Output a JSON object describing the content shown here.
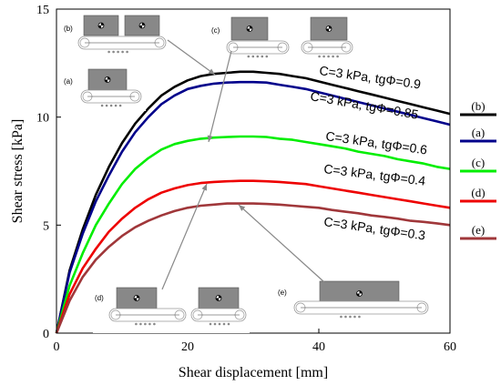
{
  "chart_data": {
    "type": "line",
    "xlabel": "Shear displacement [mm]",
    "ylabel": "Shear stress [kPa]",
    "xlim": [
      0,
      60
    ],
    "ylim": [
      0,
      15
    ],
    "xticks": [
      0,
      20,
      40,
      60
    ],
    "yticks": [
      0,
      5,
      10,
      15
    ],
    "grid": false,
    "legend_placement": "right",
    "series": [
      {
        "name": "(b)",
        "label": "C=3 kPa, tgΦ=0.9",
        "color": "#000000",
        "x": [
          0,
          2,
          4,
          6,
          8,
          10,
          12,
          14,
          16,
          18,
          20,
          22,
          24,
          26,
          28,
          30,
          32,
          34,
          36,
          38,
          40,
          42,
          44,
          46,
          48,
          50,
          52,
          54,
          56,
          58,
          60
        ],
        "y": [
          0,
          2.9,
          4.8,
          6.4,
          7.7,
          8.8,
          9.7,
          10.4,
          11.0,
          11.4,
          11.7,
          11.9,
          12.0,
          12.05,
          12.1,
          12.1,
          12.05,
          12.0,
          11.9,
          11.8,
          11.65,
          11.5,
          11.35,
          11.2,
          11.05,
          10.9,
          10.75,
          10.6,
          10.45,
          10.3,
          10.15
        ]
      },
      {
        "name": "(a)",
        "label": "C=3 kPa, tgΦ=0.85",
        "color": "#00008b",
        "x": [
          0,
          2,
          4,
          6,
          8,
          10,
          12,
          14,
          16,
          18,
          20,
          22,
          24,
          26,
          28,
          30,
          32,
          34,
          36,
          38,
          40,
          42,
          44,
          46,
          48,
          50,
          52,
          54,
          56,
          58,
          60
        ],
        "y": [
          0,
          2.8,
          4.6,
          6.1,
          7.3,
          8.4,
          9.3,
          10.0,
          10.6,
          11.0,
          11.3,
          11.45,
          11.55,
          11.6,
          11.62,
          11.62,
          11.6,
          11.5,
          11.4,
          11.3,
          11.15,
          11.0,
          10.85,
          10.7,
          10.55,
          10.4,
          10.25,
          10.1,
          9.95,
          9.8,
          9.65
        ]
      },
      {
        "name": "(c)",
        "label": "C=3 kPa, tgΦ=0.6",
        "color": "#00ee00",
        "x": [
          0,
          2,
          4,
          6,
          8,
          10,
          12,
          14,
          16,
          18,
          20,
          22,
          24,
          26,
          28,
          30,
          32,
          34,
          36,
          38,
          40,
          42,
          44,
          46,
          48,
          50,
          52,
          54,
          56,
          58,
          60
        ],
        "y": [
          0,
          2.2,
          3.7,
          5.0,
          6.0,
          6.9,
          7.6,
          8.1,
          8.5,
          8.75,
          8.9,
          9.0,
          9.05,
          9.08,
          9.1,
          9.1,
          9.08,
          9.0,
          8.95,
          8.85,
          8.75,
          8.65,
          8.55,
          8.4,
          8.3,
          8.2,
          8.05,
          7.95,
          7.85,
          7.7,
          7.6
        ]
      },
      {
        "name": "(d)",
        "label": "C=3 kPa, tgΦ=0.4",
        "color": "#ee0000",
        "x": [
          0,
          2,
          4,
          6,
          8,
          10,
          12,
          14,
          16,
          18,
          20,
          22,
          24,
          26,
          28,
          30,
          32,
          34,
          36,
          38,
          40,
          42,
          44,
          46,
          48,
          50,
          52,
          54,
          56,
          58,
          60
        ],
        "y": [
          0,
          1.8,
          3.0,
          3.9,
          4.7,
          5.3,
          5.8,
          6.2,
          6.5,
          6.7,
          6.85,
          6.95,
          7.0,
          7.03,
          7.05,
          7.05,
          7.03,
          7.0,
          6.95,
          6.9,
          6.8,
          6.7,
          6.6,
          6.5,
          6.4,
          6.3,
          6.2,
          6.1,
          6.0,
          5.9,
          5.8
        ]
      },
      {
        "name": "(e)",
        "label": "C=3 kPa, tgΦ=0.3",
        "color": "#a0373a",
        "x": [
          0,
          2,
          4,
          6,
          8,
          10,
          12,
          14,
          16,
          18,
          20,
          22,
          24,
          26,
          28,
          30,
          32,
          34,
          36,
          38,
          40,
          42,
          44,
          46,
          48,
          50,
          52,
          54,
          56,
          58,
          60
        ],
        "y": [
          0,
          1.5,
          2.6,
          3.4,
          4.0,
          4.5,
          4.9,
          5.2,
          5.45,
          5.65,
          5.8,
          5.9,
          5.95,
          6.0,
          6.0,
          6.0,
          5.98,
          5.95,
          5.9,
          5.85,
          5.8,
          5.7,
          5.62,
          5.55,
          5.45,
          5.38,
          5.3,
          5.2,
          5.15,
          5.08,
          5.0
        ]
      }
    ]
  },
  "insets": [
    {
      "letter": "(b)"
    },
    {
      "letter": "(a)"
    },
    {
      "letter": "(c)"
    },
    {
      "letter": "(d)"
    },
    {
      "letter": "(e)"
    }
  ]
}
